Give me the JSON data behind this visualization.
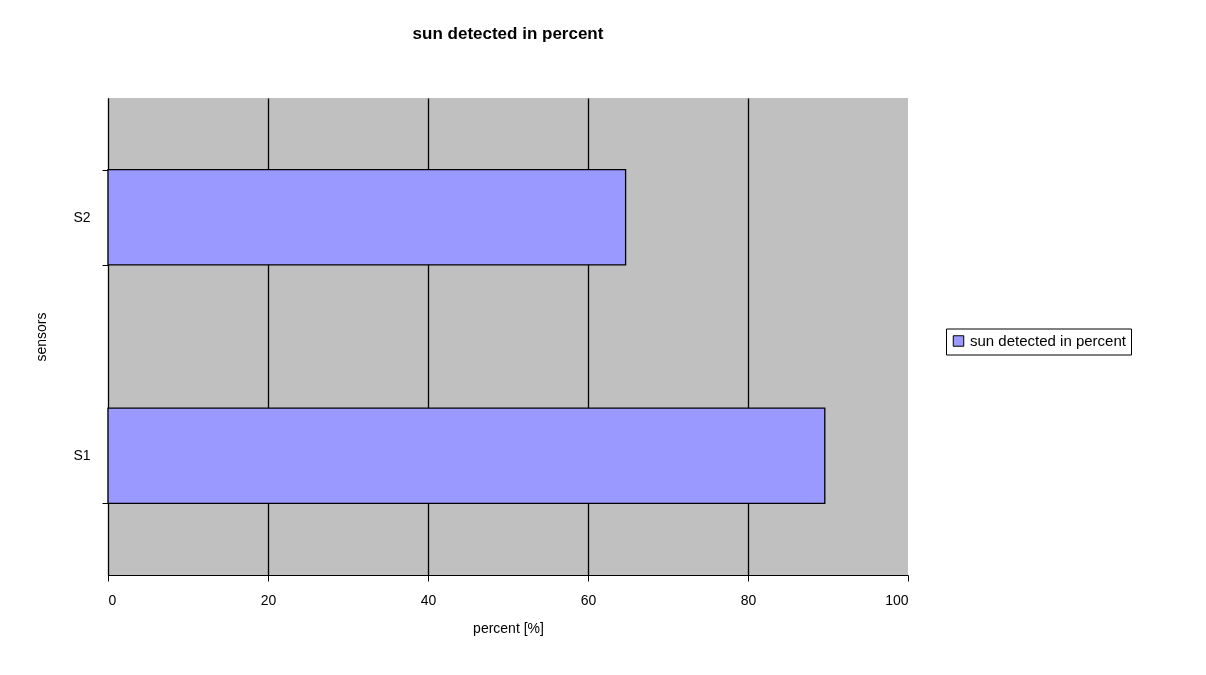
{
  "chart_data": {
    "type": "bar",
    "orientation": "horizontal",
    "title": "sun detected in percent",
    "xlabel": "percent [%]",
    "ylabel": "sensors",
    "categories": [
      "S2",
      "S1"
    ],
    "series": [
      {
        "name": "sun detected in percent",
        "color": "#9999ff",
        "values": [
          64.7,
          89.6
        ]
      }
    ],
    "xlim": [
      0,
      100
    ],
    "xticks": [
      0,
      20,
      40,
      60,
      80,
      100
    ],
    "grid": "x",
    "legend": "right"
  }
}
